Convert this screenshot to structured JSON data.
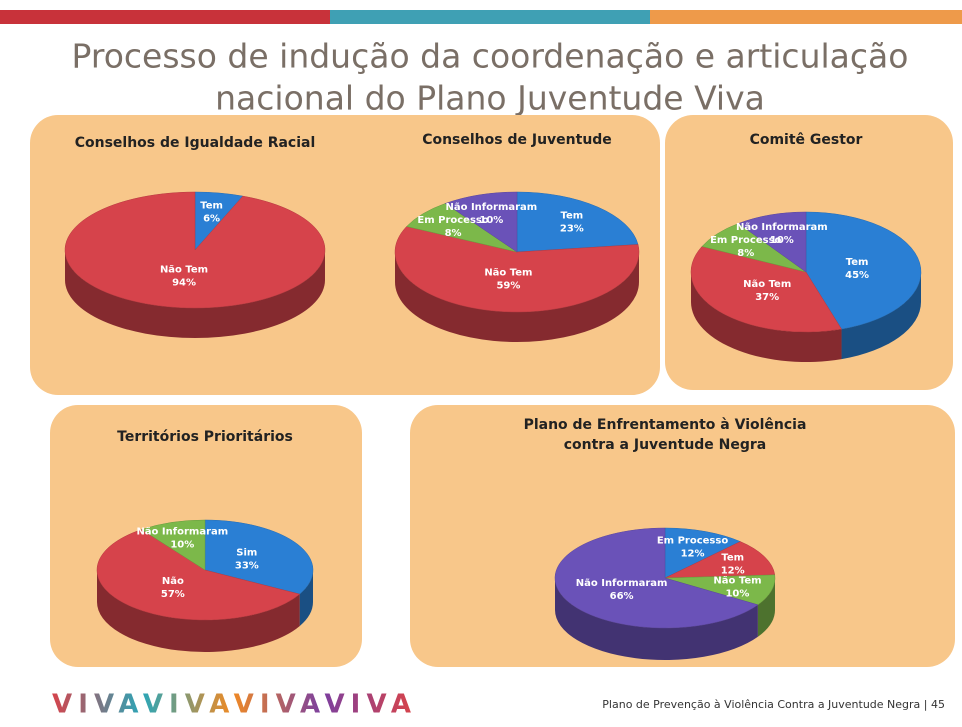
{
  "header": {
    "title": [
      "Processo de indução da coordenação e articulação",
      "nacional do Plano Juventude Viva"
    ]
  },
  "chart_data": [
    {
      "type": "pie",
      "title": [
        "Conselhos de Igualdade Racial"
      ],
      "categories": [
        "Tem",
        "Não Tem"
      ],
      "values": [
        6,
        94
      ],
      "value_labels": [
        "6%",
        "94%"
      ],
      "colors": [
        "#2a7fd4",
        "#d6434b"
      ]
    },
    {
      "type": "pie",
      "title": [
        "Conselhos de Juventude"
      ],
      "categories": [
        "Tem",
        "Não Tem",
        "Em Processo",
        "Não Informaram"
      ],
      "values": [
        23,
        59,
        8,
        10
      ],
      "value_labels": [
        "23%",
        "59%",
        "8%",
        "10%"
      ],
      "colors": [
        "#2a7fd4",
        "#d6434b",
        "#7cb84a",
        "#6a52b8"
      ]
    },
    {
      "type": "pie",
      "title": [
        "Comitê Gestor"
      ],
      "categories": [
        "Tem",
        "Não Tem",
        "Em Processo",
        "Não Informaram"
      ],
      "values": [
        45,
        37,
        8,
        10
      ],
      "value_labels": [
        "45%",
        "37%",
        "8%",
        "10%"
      ],
      "colors": [
        "#2a7fd4",
        "#d6434b",
        "#7cb84a",
        "#6a52b8"
      ]
    },
    {
      "type": "pie",
      "title": [
        "Territórios Prioritários"
      ],
      "categories": [
        "Sim",
        "Não",
        "Não Informaram"
      ],
      "values": [
        33,
        57,
        10
      ],
      "value_labels": [
        "33%",
        "57%",
        "10%"
      ],
      "colors": [
        "#2a7fd4",
        "#d6434b",
        "#7cb84a"
      ]
    },
    {
      "type": "pie",
      "title": [
        "Plano de  Enfrentamento à Violência",
        "contra a Juventude Negra"
      ],
      "categories": [
        "Em Processo",
        "Tem",
        "Não Tem",
        "Não Informaram"
      ],
      "values": [
        12,
        12,
        10,
        66
      ],
      "value_labels": [
        "12%",
        "12%",
        "10%",
        "66%"
      ],
      "colors": [
        "#2a7fd4",
        "#d6434b",
        "#7cb84a",
        "#6a52b8"
      ]
    }
  ],
  "footer": {
    "logo": "VIVAVIVAVIVAVIVA",
    "text": "Plano de Prevenção à Violência Contra a Juventude Negra  |   45"
  }
}
